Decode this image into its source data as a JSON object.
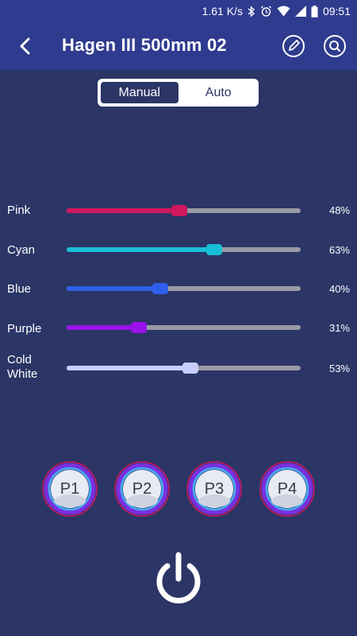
{
  "status_bar": {
    "speed": "1.61 K/s",
    "time": "09:51",
    "icons": [
      "bluetooth-icon",
      "alarm-icon",
      "wifi-icon",
      "signal-icon",
      "battery-icon"
    ]
  },
  "header": {
    "title": "Hagen III 500mm 02",
    "back_icon": "back-arrow-icon",
    "edit_icon": "edit-icon",
    "search_icon": "search-icon",
    "color": "#2f3b8e"
  },
  "mode": {
    "options": [
      "Manual",
      "Auto"
    ],
    "selected": "Manual"
  },
  "sliders": [
    {
      "label": "Pink",
      "value": 48,
      "display": "48%",
      "color": "#d0185e"
    },
    {
      "label": "Cyan",
      "value": 63,
      "display": "63%",
      "color": "#19bfd6"
    },
    {
      "label": "Blue",
      "value": 40,
      "display": "40%",
      "color": "#2f5fea"
    },
    {
      "label": "Purple",
      "value": 31,
      "display": "31%",
      "color": "#9a12ea"
    },
    {
      "label": "Cold White",
      "label_lines": [
        "Cold",
        "White"
      ],
      "value": 53,
      "display": "53%",
      "color": "#c8ccff"
    }
  ],
  "presets": [
    "P1",
    "P2",
    "P3",
    "P4"
  ],
  "power_icon": "power-icon",
  "colors": {
    "background": "#2b3566",
    "track": "#9a9aa6"
  }
}
